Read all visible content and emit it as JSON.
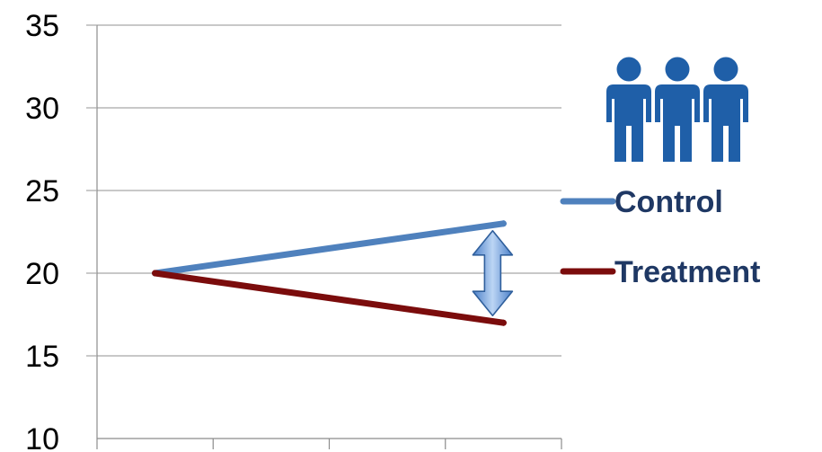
{
  "chart_data": {
    "type": "line",
    "title": "",
    "xlabel": "",
    "ylabel": "",
    "ylim": [
      10,
      35
    ],
    "yticks": [
      10,
      15,
      20,
      25,
      30,
      35
    ],
    "y_tick_labels": [
      "10",
      "15",
      "20",
      "25",
      "30",
      "35"
    ],
    "x": [
      1,
      4
    ],
    "xlim": [
      0.5,
      4.5
    ],
    "grid": "horizontal",
    "legend": "right",
    "series": [
      {
        "name": "Control",
        "values": [
          20,
          23
        ],
        "color": "#4f81bd"
      },
      {
        "name": "Treatment",
        "values": [
          20,
          17
        ],
        "color": "#7b0c0c"
      }
    ],
    "annotations": [
      {
        "type": "double-arrow",
        "x": 4,
        "from": 17,
        "to": 23,
        "color": "#6ea0dc"
      },
      {
        "type": "icon",
        "name": "people-group-icon",
        "count": 3,
        "color": "#1f5fa8"
      }
    ]
  }
}
